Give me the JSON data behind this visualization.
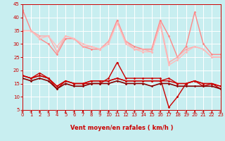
{
  "bg_color": "#c8eef0",
  "grid_color": "#ffffff",
  "xlabel": "Vent moyen/en rafales ( km/h )",
  "xlabel_color": "#cc0000",
  "tick_color": "#cc0000",
  "xmin": 0,
  "xmax": 23,
  "ymin": 5,
  "ymax": 45,
  "yticks": [
    5,
    10,
    15,
    20,
    25,
    30,
    35,
    40,
    45
  ],
  "xticks": [
    0,
    1,
    2,
    3,
    4,
    5,
    6,
    7,
    8,
    9,
    10,
    11,
    12,
    13,
    14,
    15,
    16,
    17,
    18,
    19,
    20,
    21,
    22,
    23
  ],
  "series_light": [
    {
      "color": "#ff8888",
      "lw": 1.0,
      "values": [
        43,
        35,
        32,
        30,
        26,
        32,
        32,
        29,
        28,
        28,
        31,
        39,
        31,
        29,
        28,
        28,
        39,
        33,
        25,
        29,
        42,
        30,
        26,
        26
      ]
    },
    {
      "color": "#ffaaaa",
      "lw": 1.0,
      "values": [
        35,
        35,
        33,
        33,
        27,
        33,
        32,
        29,
        29,
        28,
        31,
        38,
        31,
        28,
        28,
        27,
        38,
        23,
        25,
        28,
        29,
        28,
        25,
        25
      ]
    },
    {
      "color": "#ffbbbb",
      "lw": 1.0,
      "values": [
        35,
        35,
        32,
        33,
        29,
        33,
        32,
        30,
        29,
        28,
        30,
        38,
        30,
        28,
        27,
        27,
        37,
        22,
        24,
        27,
        29,
        28,
        25,
        25
      ]
    }
  ],
  "series_dark": [
    {
      "color": "#cc0000",
      "lw": 1.0,
      "values": [
        18,
        17,
        19,
        17,
        13,
        16,
        15,
        15,
        15,
        15,
        17,
        23,
        17,
        17,
        17,
        17,
        17,
        6,
        10,
        15,
        16,
        14,
        15,
        13
      ]
    },
    {
      "color": "#cc0000",
      "lw": 1.0,
      "values": [
        18,
        17,
        18,
        17,
        14,
        16,
        15,
        15,
        16,
        16,
        16,
        17,
        16,
        16,
        16,
        16,
        16,
        17,
        15,
        15,
        16,
        15,
        15,
        14
      ]
    },
    {
      "color": "#cc0000",
      "lw": 1.0,
      "values": [
        18,
        17,
        18,
        17,
        14,
        16,
        15,
        15,
        16,
        16,
        16,
        17,
        16,
        16,
        16,
        16,
        16,
        16,
        15,
        15,
        16,
        15,
        15,
        14
      ]
    },
    {
      "color": "#880000",
      "lw": 1.2,
      "values": [
        17,
        16,
        17,
        16,
        13,
        15,
        14,
        14,
        15,
        15,
        15,
        16,
        15,
        15,
        15,
        14,
        15,
        15,
        14,
        14,
        14,
        14,
        14,
        13
      ]
    }
  ],
  "arrow_angles": [
    45,
    45,
    45,
    45,
    45,
    90,
    45,
    90,
    45,
    45,
    45,
    45,
    45,
    45,
    45,
    45,
    45,
    90,
    90,
    45,
    90,
    45,
    90,
    45
  ]
}
